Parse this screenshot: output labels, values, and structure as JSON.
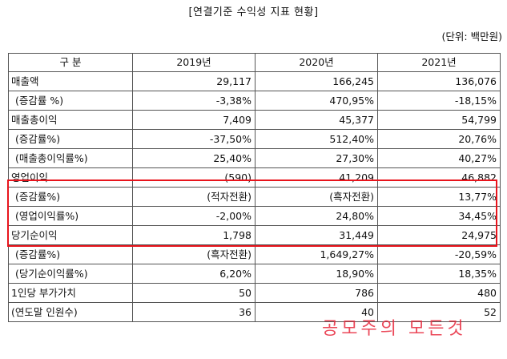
{
  "title": "[연결기준 수익성 지표 현황]",
  "unit": "(단위: 백만원)",
  "table": {
    "headers": [
      "구 분",
      "2019년",
      "2020년",
      "2021년"
    ],
    "rows": [
      {
        "label": "매출액",
        "sub": false,
        "values": [
          "29,117",
          "166,245",
          "136,076"
        ]
      },
      {
        "label": "(증감률 %)",
        "sub": true,
        "values": [
          "-3,38%",
          "470,95%",
          "-18,15%"
        ]
      },
      {
        "label": "매출총이익",
        "sub": false,
        "values": [
          "7,409",
          "45,377",
          "54,799"
        ]
      },
      {
        "label": "(증감률%)",
        "sub": true,
        "values": [
          "-37,50%",
          "512,40%",
          "20,76%"
        ]
      },
      {
        "label": "(매출총이익률%)",
        "sub": true,
        "values": [
          "25,40%",
          "27,30%",
          "40,27%"
        ]
      },
      {
        "label": "영업이익",
        "sub": false,
        "values": [
          "(590)",
          "41,209",
          "46,882"
        ]
      },
      {
        "label": "(증감률%)",
        "sub": true,
        "values": [
          "(적자전환)",
          "(흑자전환)",
          "13,77%"
        ]
      },
      {
        "label": "(영업이익률%)",
        "sub": true,
        "values": [
          "-2,00%",
          "24,80%",
          "34,45%"
        ]
      },
      {
        "label": "당기순이익",
        "sub": false,
        "values": [
          "1,798",
          "31,449",
          "24,975"
        ]
      },
      {
        "label": "(증감률%)",
        "sub": true,
        "values": [
          "(흑자전환)",
          "1,649,27%",
          "-20,59%"
        ]
      },
      {
        "label": "(당기순이익률%)",
        "sub": true,
        "values": [
          "6,20%",
          "18,90%",
          "18,35%"
        ]
      },
      {
        "label": "1인당 부가가치",
        "sub": false,
        "values": [
          "50",
          "786",
          "480"
        ]
      },
      {
        "label": "(연도말 인원수)",
        "sub": false,
        "values": [
          "36",
          "40",
          "52"
        ]
      }
    ]
  },
  "highlight_color": "#e8141c",
  "watermark": "공모주의 모든것"
}
